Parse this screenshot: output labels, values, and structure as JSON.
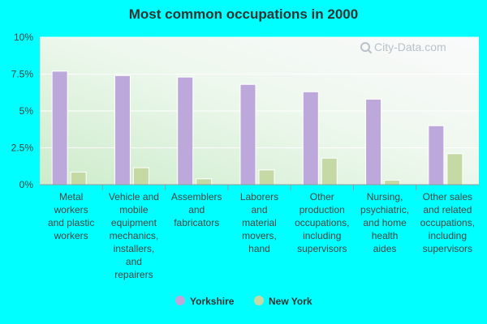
{
  "chart_data": {
    "type": "bar",
    "title": "Most common occupations in 2000",
    "y_ticks": [
      "0%",
      "2.5%",
      "5%",
      "7.5%",
      "10%"
    ],
    "ylim": [
      0,
      10
    ],
    "categories": [
      [
        "Metal",
        "workers",
        "and plastic",
        "workers"
      ],
      [
        "Vehicle and",
        "mobile",
        "equipment",
        "mechanics,",
        "installers,",
        "and",
        "repairers"
      ],
      [
        "Assemblers",
        "and",
        "fabricators"
      ],
      [
        "Laborers",
        "and",
        "material",
        "movers,",
        "hand"
      ],
      [
        "Other",
        "production",
        "occupations,",
        "including",
        "supervisors"
      ],
      [
        "Nursing,",
        "psychiatric,",
        "and home",
        "health",
        "aides"
      ],
      [
        "Other sales",
        "and related",
        "occupations,",
        "including",
        "supervisors"
      ]
    ],
    "series": [
      {
        "name": "Yorkshire",
        "color": "#bca8da",
        "values": [
          7.7,
          7.4,
          7.3,
          6.8,
          6.3,
          5.8,
          4.0
        ]
      },
      {
        "name": "New York",
        "color": "#c5d9a4",
        "values": [
          0.85,
          1.15,
          0.4,
          1.0,
          1.8,
          0.3,
          2.1
        ]
      }
    ],
    "grid": true,
    "legend_position": "bottom",
    "watermark": "City-Data.com"
  }
}
